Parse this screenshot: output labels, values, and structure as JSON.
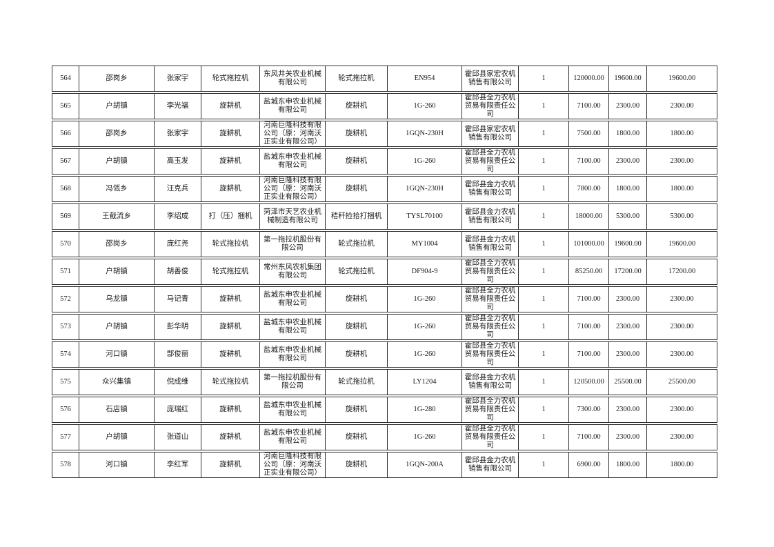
{
  "page": {
    "background_color": "#ffffff",
    "text_color": "#1a1a1a",
    "grid_line_color": "#2e2e2e"
  },
  "table": {
    "rows": [
      {
        "no": "564",
        "town": "邵岗乡",
        "person": "张家宇",
        "machine_type": "轮式拖拉机",
        "manufacturer": "东风井关农业机械有限公司",
        "category": "轮式拖拉机",
        "model": "EN954",
        "dealer": "霍邱县家宏农机销售有限公司",
        "quantity": "1",
        "price": "120000.00",
        "subsidy": "19600.00",
        "total_subsidy": "19600.00"
      },
      {
        "no": "565",
        "town": "户胡镇",
        "person": "李光福",
        "machine_type": "旋耕机",
        "manufacturer": "盐城东申农业机械有限公司",
        "category": "旋耕机",
        "model": "1G-260",
        "dealer": "霍邱县全力农机贸易有限责任公司",
        "quantity": "1",
        "price": "7100.00",
        "subsidy": "2300.00",
        "total_subsidy": "2300.00"
      },
      {
        "no": "566",
        "town": "邵岗乡",
        "person": "张家宇",
        "machine_type": "旋耕机",
        "manufacturer": "河南巨隆科技有限公司（原：河南沃正实业有限公司）",
        "category": "旋耕机",
        "model": "1GQN-230H",
        "dealer": "霍邱县家宏农机销售有限公司",
        "quantity": "1",
        "price": "7500.00",
        "subsidy": "1800.00",
        "total_subsidy": "1800.00"
      },
      {
        "no": "567",
        "town": "户胡镇",
        "person": "高玉发",
        "machine_type": "旋耕机",
        "manufacturer": "盐城东申农业机械有限公司",
        "category": "旋耕机",
        "model": "1G-260",
        "dealer": "霍邱县全力农机贸易有限责任公司",
        "quantity": "1",
        "price": "7100.00",
        "subsidy": "2300.00",
        "total_subsidy": "2300.00"
      },
      {
        "no": "568",
        "town": "冯瓴乡",
        "person": "汪克兵",
        "machine_type": "旋耕机",
        "manufacturer": "河南巨隆科技有限公司（原：河南沃正实业有限公司）",
        "category": "旋耕机",
        "model": "1GQN-230H",
        "dealer": "霍邱县金力农机销售有限公司",
        "quantity": "1",
        "price": "7800.00",
        "subsidy": "1800.00",
        "total_subsidy": "1800.00"
      },
      {
        "no": "569",
        "town": "王截流乡",
        "person": "李绍成",
        "machine_type": "打（压）捆机",
        "manufacturer": "菏泽市天艺农业机械制造有限公司",
        "category": "秸秆捡拾打捆机",
        "model": "TYSL70100",
        "dealer": "霍邱县金力农机销售有限公司",
        "quantity": "1",
        "price": "18000.00",
        "subsidy": "5300.00",
        "total_subsidy": "5300.00"
      },
      {
        "no": "570",
        "town": "邵岗乡",
        "person": "庞红尧",
        "machine_type": "轮式拖拉机",
        "manufacturer": "第一拖拉机股份有限公司",
        "category": "轮式拖拉机",
        "model": "MY1004",
        "dealer": "霍邱县金力农机销售有限公司",
        "quantity": "1",
        "price": "101000.00",
        "subsidy": "19600.00",
        "total_subsidy": "19600.00"
      },
      {
        "no": "571",
        "town": "户胡镇",
        "person": "胡善俊",
        "machine_type": "轮式拖拉机",
        "manufacturer": "常州东风农机集团有限公司",
        "category": "轮式拖拉机",
        "model": "DF904-9",
        "dealer": "霍邱县全力农机贸易有限责任公司",
        "quantity": "1",
        "price": "85250.00",
        "subsidy": "17200.00",
        "total_subsidy": "17200.00"
      },
      {
        "no": "572",
        "town": "乌龙镇",
        "person": "马记青",
        "machine_type": "旋耕机",
        "manufacturer": "盐城东申农业机械有限公司",
        "category": "旋耕机",
        "model": "1G-260",
        "dealer": "霍邱县全力农机贸易有限责任公司",
        "quantity": "1",
        "price": "7100.00",
        "subsidy": "2300.00",
        "total_subsidy": "2300.00"
      },
      {
        "no": "573",
        "town": "户胡镇",
        "person": "彭华明",
        "machine_type": "旋耕机",
        "manufacturer": "盐城东申农业机械有限公司",
        "category": "旋耕机",
        "model": "1G-260",
        "dealer": "霍邱县全力农机贸易有限责任公司",
        "quantity": "1",
        "price": "7100.00",
        "subsidy": "2300.00",
        "total_subsidy": "2300.00"
      },
      {
        "no": "574",
        "town": "河口镇",
        "person": "郜俊丽",
        "machine_type": "旋耕机",
        "manufacturer": "盐城东申农业机械有限公司",
        "category": "旋耕机",
        "model": "1G-260",
        "dealer": "霍邱县全力农机贸易有限责任公司",
        "quantity": "1",
        "price": "7100.00",
        "subsidy": "2300.00",
        "total_subsidy": "2300.00"
      },
      {
        "no": "575",
        "town": "众兴集镇",
        "person": "倪成维",
        "machine_type": "轮式拖拉机",
        "manufacturer": "第一拖拉机股份有限公司",
        "category": "轮式拖拉机",
        "model": "LY1204",
        "dealer": "霍邱县金力农机销售有限公司",
        "quantity": "1",
        "price": "120500.00",
        "subsidy": "25500.00",
        "total_subsidy": "25500.00"
      },
      {
        "no": "576",
        "town": "石店镇",
        "person": "庞瑞红",
        "machine_type": "旋耕机",
        "manufacturer": "盐城东申农业机械有限公司",
        "category": "旋耕机",
        "model": "1G-280",
        "dealer": "霍邱县全力农机贸易有限责任公司",
        "quantity": "1",
        "price": "7300.00",
        "subsidy": "2300.00",
        "total_subsidy": "2300.00"
      },
      {
        "no": "577",
        "town": "户胡镇",
        "person": "张道山",
        "machine_type": "旋耕机",
        "manufacturer": "盐城东申农业机械有限公司",
        "category": "旋耕机",
        "model": "1G-260",
        "dealer": "霍邱县全力农机贸易有限责任公司",
        "quantity": "1",
        "price": "7100.00",
        "subsidy": "2300.00",
        "total_subsidy": "2300.00"
      },
      {
        "no": "578",
        "town": "河口镇",
        "person": "李红军",
        "machine_type": "旋耕机",
        "manufacturer": "河南巨隆科技有限公司（原：河南沃正实业有限公司）",
        "category": "旋耕机",
        "model": "1GQN-200A",
        "dealer": "霍邱县金力农机销售有限公司",
        "quantity": "1",
        "price": "6900.00",
        "subsidy": "1800.00",
        "total_subsidy": "1800.00"
      }
    ]
  }
}
